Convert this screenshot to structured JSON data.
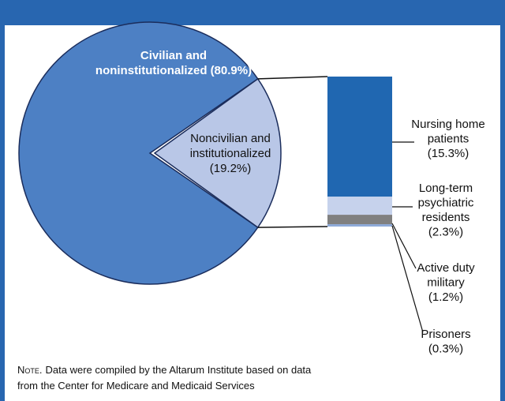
{
  "chart_data": {
    "type": "pie-of-bar",
    "pie": {
      "categories": [
        [
          "Civilian and",
          "noninstitutionalized"
        ],
        [
          "Noncivilian and",
          "institutionalized"
        ]
      ],
      "values": [
        80.9,
        19.2
      ],
      "value_labels": [
        "(80.9%)",
        "(19.2%)"
      ],
      "colors": [
        "#4d80c4",
        "#b9c7e7"
      ]
    },
    "bar": {
      "categories": [
        [
          "Nursing home",
          "patients"
        ],
        [
          "Long-term",
          "psychiatric",
          "residents"
        ],
        [
          "Active duty",
          "military"
        ],
        [
          "Prisoners"
        ]
      ],
      "values": [
        15.3,
        2.3,
        1.2,
        0.3
      ],
      "value_labels": [
        "(15.3%)",
        "(2.3%)",
        "(1.2%)",
        "(0.3%)"
      ],
      "colors": [
        "#2067b1",
        "#c6d2ec",
        "#808080",
        "#8eaad8"
      ]
    },
    "note_label": "Note.",
    "note": [
      "Data were compiled by the Altarum Institute based on data",
      "from the Center for Medicare and Medicaid Services"
    ]
  }
}
